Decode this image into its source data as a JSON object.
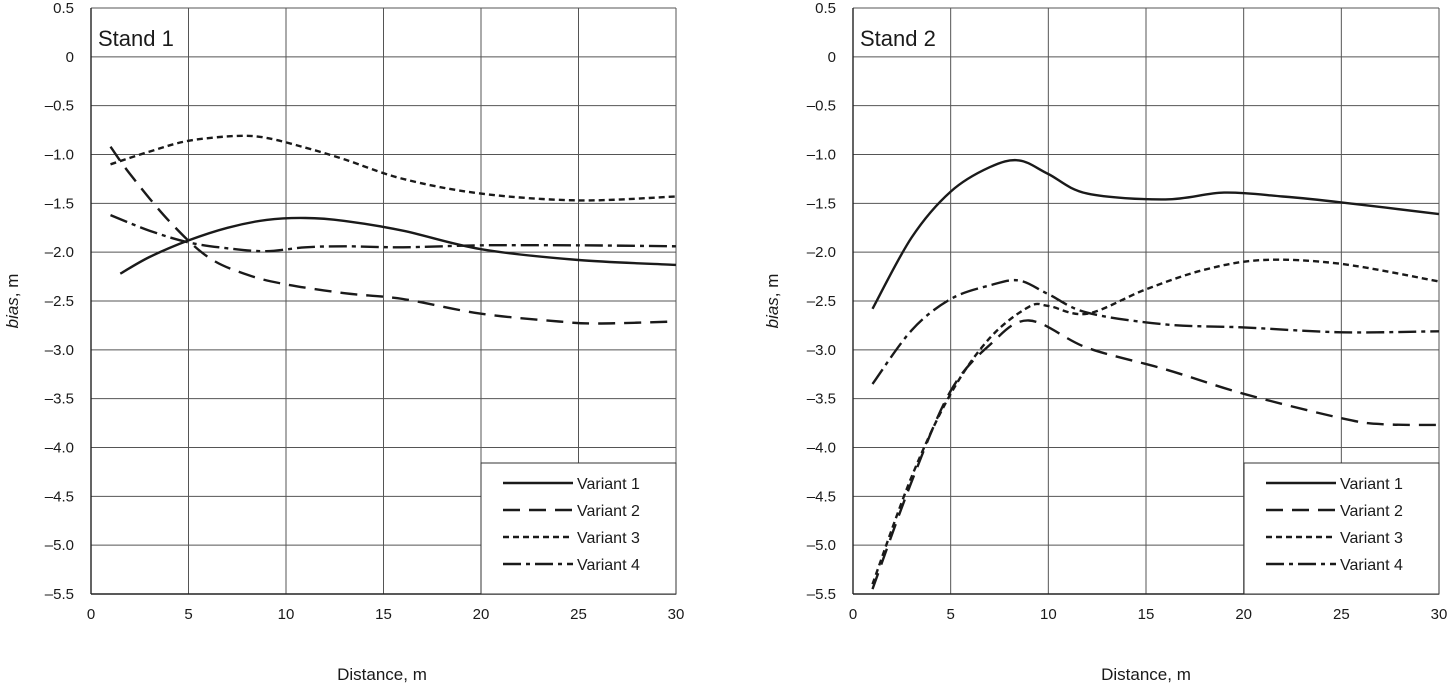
{
  "chart_data": [
    {
      "type": "line",
      "title": "Stand 1",
      "xlabel": "Distance, m",
      "ylabel_italic": "bias",
      "ylabel_unit": ", m",
      "xlim": [
        0,
        30
      ],
      "ylim": [
        -5.5,
        0.5
      ],
      "xticks": [
        0,
        5,
        10,
        15,
        20,
        25,
        30
      ],
      "xtick_labels": [
        "0",
        "5",
        "10",
        "15",
        "20",
        "25",
        "30"
      ],
      "yticks": [
        0.5,
        0,
        -0.5,
        -1,
        -1.5,
        -2,
        -2.5,
        -3,
        -3.5,
        -4,
        -4.5,
        -5,
        -5.5
      ],
      "ytick_labels": [
        "0.5",
        "0",
        "–0.5",
        "–1.0",
        "–1.5",
        "–2.0",
        "–2.5",
        "–3.0",
        "–3.5",
        "–4.0",
        "–4.5",
        "–5.0",
        "–5.5"
      ],
      "grid": true,
      "legend_position": "bottom-right",
      "series": [
        {
          "name": "Variant 1",
          "style": "solid",
          "x": [
            1.5,
            3,
            5,
            7,
            9,
            11,
            13,
            16,
            20,
            25,
            30
          ],
          "y": [
            -2.22,
            -2.05,
            -1.88,
            -1.75,
            -1.67,
            -1.65,
            -1.68,
            -1.78,
            -1.97,
            -2.08,
            -2.13
          ]
        },
        {
          "name": "Variant 2",
          "style": "dashed",
          "x": [
            1,
            2,
            4,
            6,
            8,
            10,
            13,
            16,
            20,
            24,
            26,
            30
          ],
          "y": [
            -0.92,
            -1.2,
            -1.68,
            -2.05,
            -2.23,
            -2.33,
            -2.42,
            -2.48,
            -2.63,
            -2.71,
            -2.73,
            -2.71
          ]
        },
        {
          "name": "Variant 3",
          "style": "dotted",
          "x": [
            1,
            3,
            5,
            7.5,
            9,
            11,
            13,
            16,
            20,
            25,
            30
          ],
          "y": [
            -1.1,
            -0.97,
            -0.86,
            -0.81,
            -0.83,
            -0.93,
            -1.05,
            -1.25,
            -1.4,
            -1.47,
            -1.43
          ]
        },
        {
          "name": "Variant 4",
          "style": "dashdot",
          "x": [
            1,
            3,
            5,
            7,
            9,
            11,
            13,
            16,
            20,
            25,
            30
          ],
          "y": [
            -1.62,
            -1.78,
            -1.9,
            -1.96,
            -1.99,
            -1.95,
            -1.94,
            -1.95,
            -1.93,
            -1.93,
            -1.94
          ]
        }
      ]
    },
    {
      "type": "line",
      "title": "Stand 2",
      "xlabel": "Distance, m",
      "ylabel_italic": "bias",
      "ylabel_unit": ", m",
      "xlim": [
        0,
        30
      ],
      "ylim": [
        -5.5,
        0.5
      ],
      "xticks": [
        0,
        5,
        10,
        15,
        20,
        25,
        30
      ],
      "xtick_labels": [
        "0",
        "5",
        "10",
        "15",
        "20",
        "25",
        "30"
      ],
      "yticks": [
        0.5,
        0,
        -0.5,
        -1,
        -1.5,
        -2,
        -2.5,
        -3,
        -3.5,
        -4,
        -4.5,
        -5,
        -5.5
      ],
      "ytick_labels": [
        "0.5",
        "0",
        "–0.5",
        "–1.0",
        "–1.5",
        "–2.0",
        "–2.5",
        "–3.0",
        "–3.5",
        "–4.0",
        "–4.5",
        "–5.0",
        "–5.5"
      ],
      "grid": true,
      "legend_position": "bottom-right",
      "series": [
        {
          "name": "Variant 1",
          "style": "solid",
          "x": [
            1,
            3,
            5,
            7,
            8.5,
            10,
            12,
            16,
            19,
            22,
            25,
            30
          ],
          "y": [
            -2.58,
            -1.85,
            -1.38,
            -1.13,
            -1.06,
            -1.2,
            -1.4,
            -1.46,
            -1.39,
            -1.43,
            -1.49,
            -1.61
          ]
        },
        {
          "name": "Variant 2",
          "style": "dashed",
          "x": [
            1,
            3,
            5,
            7,
            9,
            12,
            16,
            20,
            25,
            27,
            30
          ],
          "y": [
            -5.45,
            -4.35,
            -3.42,
            -2.95,
            -2.7,
            -2.98,
            -3.2,
            -3.45,
            -3.7,
            -3.76,
            -3.77
          ]
        },
        {
          "name": "Variant 3",
          "style": "dotted",
          "x": [
            1,
            3,
            5,
            7,
            9,
            10,
            12,
            15,
            18,
            21,
            25,
            30
          ],
          "y": [
            -5.4,
            -4.3,
            -3.45,
            -2.88,
            -2.56,
            -2.55,
            -2.63,
            -2.38,
            -2.18,
            -2.08,
            -2.12,
            -2.3
          ]
        },
        {
          "name": "Variant 4",
          "style": "dashdot",
          "x": [
            1,
            3,
            5,
            7,
            8.5,
            10,
            12,
            16,
            20,
            25,
            30
          ],
          "y": [
            -3.35,
            -2.8,
            -2.48,
            -2.34,
            -2.29,
            -2.43,
            -2.62,
            -2.74,
            -2.77,
            -2.82,
            -2.81
          ]
        }
      ]
    }
  ],
  "colors": {
    "line": "#1a1a1a",
    "grid": "#555555",
    "background": "#ffffff"
  }
}
